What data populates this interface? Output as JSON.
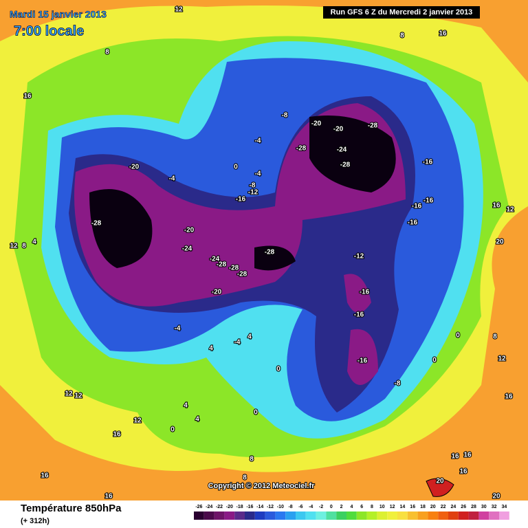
{
  "header": {
    "date": "Mardi 15 janvier 2013",
    "time": "7:00 locale",
    "run": "Run GFS 6 Z du Mercredi 2 janvier 2013"
  },
  "copyright": "Copyright © 2012 Meteociel.fr",
  "footer": {
    "title": "Température 850hPa",
    "lead": "(+ 312h)"
  },
  "legend": {
    "ticks": [
      -26,
      -24,
      -22,
      -20,
      -18,
      -16,
      -14,
      -12,
      -10,
      -8,
      -6,
      -4,
      -2,
      0,
      2,
      4,
      6,
      8,
      10,
      12,
      14,
      16,
      18,
      20,
      22,
      24,
      26,
      28,
      30,
      32,
      34
    ],
    "colors": [
      "#2a0030",
      "#4b0a4b",
      "#6e1468",
      "#8a1a86",
      "#5a2a8a",
      "#2a2a8a",
      "#1e3cc0",
      "#2a5adc",
      "#2a78f0",
      "#2aa0f0",
      "#3cc8f0",
      "#50e0f0",
      "#6ef0e0",
      "#50e0a0",
      "#3cd060",
      "#50dc3c",
      "#8ce628",
      "#b4f028",
      "#dcf032",
      "#f0f03c",
      "#f8e040",
      "#f8c030",
      "#f8a020",
      "#f88010",
      "#f06010",
      "#e04010",
      "#d02020",
      "#c02040",
      "#d040a0",
      "#e070c0",
      "#f0a0e0"
    ]
  },
  "contour_labels": [
    -28,
    -20,
    -20,
    -24,
    -24,
    -28,
    -28,
    -28,
    -28,
    -20,
    -20,
    -20,
    -28,
    -28,
    -24,
    -28,
    -8,
    -16,
    -16,
    -16,
    -16,
    -16,
    -12,
    -8,
    -4,
    -4,
    -4,
    0,
    -12,
    -16,
    -16,
    -16,
    -8,
    0,
    0,
    -4,
    -4,
    4,
    4,
    0,
    0,
    4,
    4,
    0,
    8,
    16,
    12,
    8,
    16,
    16,
    12,
    20,
    12,
    8,
    4,
    12,
    12,
    12,
    8,
    8,
    16,
    16,
    16,
    16,
    16,
    20,
    20,
    16,
    12,
    8,
    16
  ]
}
